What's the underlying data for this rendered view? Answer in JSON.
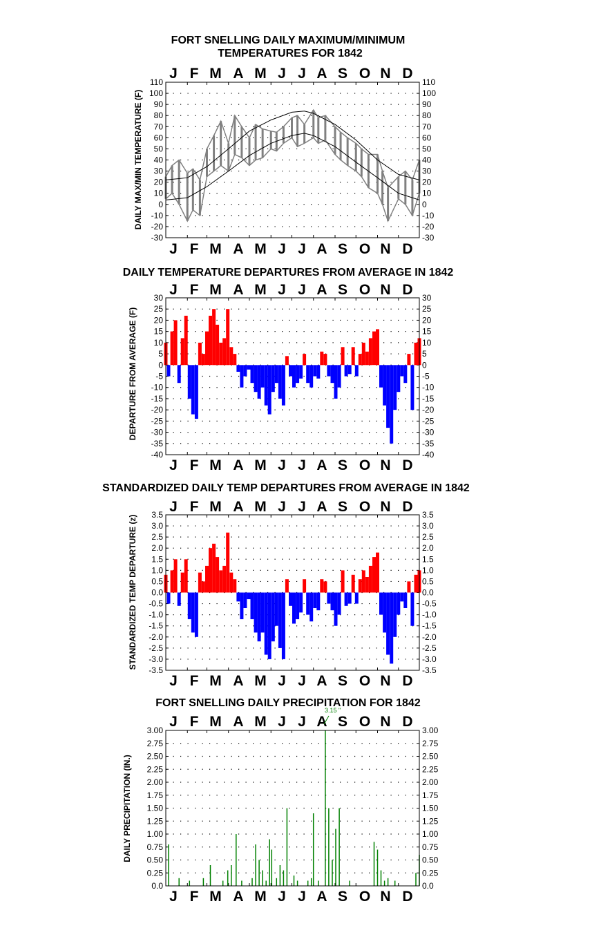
{
  "months": [
    "J",
    "F",
    "M",
    "A",
    "M",
    "J",
    "J",
    "A",
    "S",
    "O",
    "N",
    "D"
  ],
  "colors": {
    "warm": "#ff0000",
    "cold": "#0000ff",
    "precip": "#008000",
    "temp_trace": "#808080",
    "normals": "#000000"
  },
  "chart_data": [
    {
      "type": "line",
      "title_line1": "FORT SNELLING DAILY MAXIMUM/MINIMUM",
      "title_line2": "TEMPERATURES FOR 1842",
      "ylabel": "DAILY MAX/MIN TEMPERATURE (F)",
      "ylim": [
        -30,
        110
      ],
      "yticks": [
        "110",
        "100",
        "90",
        "80",
        "70",
        "60",
        "50",
        "40",
        "30",
        "20",
        "10",
        "0",
        "-10",
        "-20",
        "-30"
      ],
      "x_unit": "day of year (1-365)",
      "series": [
        {
          "role": "daily_max",
          "x": [
            1,
            10,
            20,
            32,
            40,
            50,
            60,
            70,
            80,
            91,
            100,
            110,
            121,
            130,
            140,
            152,
            160,
            170,
            182,
            190,
            200,
            213,
            220,
            230,
            244,
            252,
            262,
            274,
            282,
            292,
            305,
            312,
            320,
            335,
            345,
            355,
            365
          ],
          "values": [
            25,
            35,
            40,
            28,
            32,
            22,
            50,
            62,
            75,
            55,
            80,
            70,
            60,
            72,
            68,
            66,
            65,
            70,
            78,
            80,
            72,
            85,
            78,
            80,
            70,
            65,
            60,
            55,
            50,
            45,
            45,
            30,
            15,
            25,
            30,
            22,
            40
          ]
        },
        {
          "role": "daily_min",
          "x": [
            1,
            10,
            20,
            32,
            40,
            50,
            60,
            70,
            80,
            91,
            100,
            110,
            121,
            130,
            140,
            152,
            160,
            170,
            182,
            190,
            200,
            213,
            220,
            230,
            244,
            252,
            262,
            274,
            282,
            292,
            305,
            312,
            320,
            335,
            345,
            355,
            365
          ],
          "values": [
            5,
            10,
            0,
            -15,
            -5,
            -10,
            25,
            30,
            35,
            30,
            45,
            42,
            35,
            40,
            42,
            50,
            48,
            55,
            60,
            52,
            55,
            60,
            55,
            58,
            45,
            40,
            35,
            30,
            25,
            15,
            10,
            0,
            -15,
            5,
            0,
            -10,
            10
          ]
        },
        {
          "role": "normal_max",
          "x": [
            1,
            32,
            60,
            91,
            121,
            152,
            182,
            200,
            213,
            244,
            274,
            305,
            335,
            365
          ],
          "values": [
            22,
            24,
            34,
            50,
            66,
            76,
            83,
            84,
            82,
            72,
            58,
            40,
            27,
            22
          ]
        },
        {
          "role": "normal_min",
          "x": [
            1,
            32,
            60,
            91,
            121,
            152,
            182,
            200,
            213,
            244,
            274,
            305,
            335,
            365
          ],
          "values": [
            4,
            6,
            16,
            30,
            44,
            55,
            62,
            64,
            62,
            52,
            38,
            24,
            10,
            4
          ]
        }
      ]
    },
    {
      "type": "bar",
      "title": "DAILY TEMPERATURE DEPARTURES FROM AVERAGE IN 1842",
      "ylabel": "DEPARTURE FROM AVERAGE (F)",
      "ylim": [
        -40,
        30
      ],
      "yticks": [
        "30",
        "25",
        "20",
        "15",
        "10",
        "5",
        "0",
        "-5",
        "-10",
        "-15",
        "-20",
        "-25",
        "-30",
        "-35",
        "-40"
      ],
      "x_unit": "day of year (1-365)",
      "x": [
        1,
        5,
        10,
        15,
        20,
        25,
        30,
        35,
        40,
        45,
        50,
        55,
        60,
        65,
        70,
        75,
        80,
        85,
        90,
        95,
        100,
        105,
        110,
        115,
        120,
        125,
        130,
        135,
        140,
        145,
        150,
        155,
        160,
        165,
        170,
        175,
        180,
        185,
        190,
        195,
        200,
        205,
        210,
        215,
        220,
        225,
        230,
        235,
        240,
        245,
        250,
        255,
        260,
        265,
        270,
        275,
        280,
        285,
        290,
        295,
        300,
        305,
        310,
        315,
        320,
        325,
        330,
        335,
        340,
        345,
        350,
        355,
        360,
        365
      ],
      "values": [
        10,
        -5,
        15,
        20,
        -8,
        12,
        22,
        -15,
        -22,
        -24,
        10,
        5,
        15,
        22,
        25,
        18,
        10,
        12,
        25,
        8,
        5,
        -3,
        -10,
        -5,
        -2,
        -8,
        -12,
        -15,
        -10,
        -18,
        -22,
        -12,
        -8,
        -15,
        -18,
        4,
        -5,
        -10,
        -8,
        -6,
        5,
        -8,
        -10,
        -5,
        -6,
        6,
        5,
        -5,
        -8,
        -15,
        -10,
        8,
        -5,
        -4,
        8,
        -5,
        5,
        10,
        6,
        12,
        15,
        16,
        -10,
        -18,
        -28,
        -35,
        -20,
        -12,
        -5,
        -8,
        5,
        -20,
        10,
        12
      ]
    },
    {
      "type": "bar",
      "title": "STANDARDIZED DAILY TEMP DEPARTURES FROM AVERAGE IN 1842",
      "ylabel": "STANDARDIZED TEMP DEPARTURE (z)",
      "ylim": [
        -3.5,
        3.5
      ],
      "yticks": [
        "3.5",
        "3.0",
        "2.5",
        "2.0",
        "1.5",
        "1.0",
        "0.5",
        "0.0",
        "-0.5",
        "-1.0",
        "-1.5",
        "-2.0",
        "-2.5",
        "-3.0",
        "-3.5"
      ],
      "x_unit": "day of year (1-365)",
      "x": [
        1,
        5,
        10,
        15,
        20,
        25,
        30,
        35,
        40,
        45,
        50,
        55,
        60,
        65,
        70,
        75,
        80,
        85,
        90,
        95,
        100,
        105,
        110,
        115,
        120,
        125,
        130,
        135,
        140,
        145,
        150,
        155,
        160,
        165,
        170,
        175,
        180,
        185,
        190,
        195,
        200,
        205,
        210,
        215,
        220,
        225,
        230,
        235,
        240,
        245,
        250,
        255,
        260,
        265,
        270,
        275,
        280,
        285,
        290,
        295,
        300,
        305,
        310,
        315,
        320,
        325,
        330,
        335,
        340,
        345,
        350,
        355,
        360,
        365
      ],
      "values": [
        0.8,
        -0.5,
        1.0,
        1.5,
        -0.6,
        0.9,
        1.5,
        -1.2,
        -1.8,
        -2.0,
        0.9,
        0.5,
        1.2,
        2.0,
        2.2,
        1.6,
        1.0,
        1.2,
        2.7,
        0.9,
        0.6,
        -0.4,
        -1.2,
        -0.7,
        -0.3,
        -1.2,
        -1.8,
        -2.2,
        -1.8,
        -2.8,
        -3.0,
        -2.2,
        -1.5,
        -2.5,
        -3.0,
        0.6,
        -0.6,
        -1.4,
        -1.2,
        -0.9,
        0.6,
        -1.0,
        -1.3,
        -0.7,
        -0.8,
        0.6,
        0.5,
        -0.5,
        -0.8,
        -1.5,
        -1.0,
        1.0,
        -0.6,
        -0.5,
        0.8,
        -0.5,
        0.6,
        1.0,
        0.7,
        1.2,
        1.6,
        1.8,
        -1.0,
        -1.8,
        -2.8,
        -3.2,
        -2.0,
        -1.0,
        -0.4,
        -0.7,
        0.5,
        -1.5,
        0.8,
        1.0
      ]
    },
    {
      "type": "bar",
      "title": "FORT SNELLING DAILY PRECIPITATION FOR 1842",
      "ylabel": "DAILY PRECIPITATION (IN.)",
      "ylim": [
        0,
        3
      ],
      "yticks": [
        "3.00",
        "2.75",
        "2.50",
        "2.25",
        "2.00",
        "1.75",
        "1.50",
        "1.25",
        "1.00",
        "0.75",
        "0.50",
        "0.25",
        "0.0"
      ],
      "annotation": "3.15 \"",
      "x_unit": "day of year (1-365)",
      "x": [
        5,
        20,
        35,
        55,
        65,
        83,
        90,
        95,
        102,
        110,
        125,
        130,
        135,
        140,
        145,
        150,
        153,
        160,
        165,
        170,
        175,
        185,
        190,
        205,
        210,
        213,
        220,
        230,
        235,
        240,
        245,
        250,
        265,
        300,
        305,
        310,
        315,
        320,
        330,
        360,
        365
      ],
      "values": [
        0.8,
        0.15,
        0.1,
        0.15,
        0.4,
        0.1,
        0.3,
        0.4,
        1.0,
        0.1,
        0.15,
        0.8,
        0.5,
        0.3,
        0.1,
        0.9,
        0.7,
        0.15,
        0.4,
        0.3,
        1.5,
        0.2,
        0.1,
        0.1,
        0.15,
        1.4,
        0.1,
        3.15,
        1.5,
        0.5,
        1.1,
        1.5,
        0.1,
        0.85,
        0.7,
        0.3,
        0.1,
        0.15,
        0.1,
        0.25,
        0.6
      ]
    }
  ]
}
